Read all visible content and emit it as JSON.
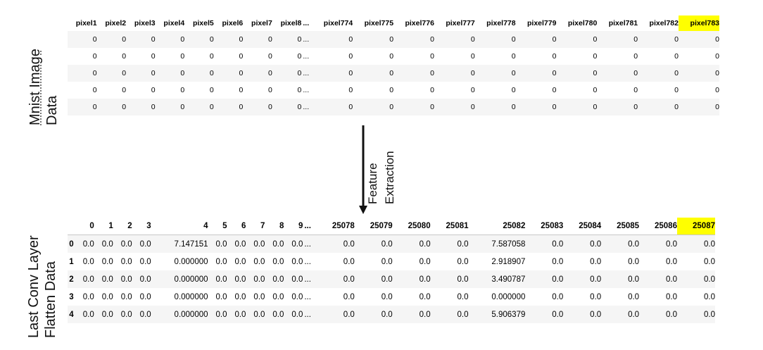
{
  "top_label": {
    "line1": "Mnist Image",
    "line2": "Data"
  },
  "bottom_label": {
    "line1": "Last Conv Layer",
    "line2": "Flatten Data"
  },
  "arrow_label": {
    "line1": "Feature",
    "line2": "Extraction"
  },
  "highlight_color": "#ffff00",
  "mnist_table": {
    "columns": [
      "pixel1",
      "pixel2",
      "pixel3",
      "pixel4",
      "pixel5",
      "pixel6",
      "pixel7",
      "pixel8",
      "...",
      "pixel774",
      "pixel775",
      "pixel776",
      "pixel777",
      "pixel778",
      "pixel779",
      "pixel780",
      "pixel781",
      "pixel782",
      "pixel783"
    ],
    "highlighted_column": "pixel783",
    "rows": [
      [
        "0",
        "0",
        "0",
        "0",
        "0",
        "0",
        "0",
        "0",
        "...",
        "0",
        "0",
        "0",
        "0",
        "0",
        "0",
        "0",
        "0",
        "0",
        "0"
      ],
      [
        "0",
        "0",
        "0",
        "0",
        "0",
        "0",
        "0",
        "0",
        "...",
        "0",
        "0",
        "0",
        "0",
        "0",
        "0",
        "0",
        "0",
        "0",
        "0"
      ],
      [
        "0",
        "0",
        "0",
        "0",
        "0",
        "0",
        "0",
        "0",
        "...",
        "0",
        "0",
        "0",
        "0",
        "0",
        "0",
        "0",
        "0",
        "0",
        "0"
      ],
      [
        "0",
        "0",
        "0",
        "0",
        "0",
        "0",
        "0",
        "0",
        "...",
        "0",
        "0",
        "0",
        "0",
        "0",
        "0",
        "0",
        "0",
        "0",
        "0"
      ],
      [
        "0",
        "0",
        "0",
        "0",
        "0",
        "0",
        "0",
        "0",
        "...",
        "0",
        "0",
        "0",
        "0",
        "0",
        "0",
        "0",
        "0",
        "0",
        "0"
      ]
    ]
  },
  "flatten_table": {
    "columns": [
      "0",
      "1",
      "2",
      "3",
      "4",
      "5",
      "6",
      "7",
      "8",
      "9",
      "...",
      "25078",
      "25079",
      "25080",
      "25081",
      "25082",
      "25083",
      "25084",
      "25085",
      "25086",
      "25087"
    ],
    "highlighted_column": "25087",
    "index": [
      "0",
      "1",
      "2",
      "3",
      "4"
    ],
    "rows": [
      [
        "0.0",
        "0.0",
        "0.0",
        "0.0",
        "7.147151",
        "0.0",
        "0.0",
        "0.0",
        "0.0",
        "0.0",
        "...",
        "0.0",
        "0.0",
        "0.0",
        "0.0",
        "7.587058",
        "0.0",
        "0.0",
        "0.0",
        "0.0",
        "0.0"
      ],
      [
        "0.0",
        "0.0",
        "0.0",
        "0.0",
        "0.000000",
        "0.0",
        "0.0",
        "0.0",
        "0.0",
        "0.0",
        "...",
        "0.0",
        "0.0",
        "0.0",
        "0.0",
        "2.918907",
        "0.0",
        "0.0",
        "0.0",
        "0.0",
        "0.0"
      ],
      [
        "0.0",
        "0.0",
        "0.0",
        "0.0",
        "0.000000",
        "0.0",
        "0.0",
        "0.0",
        "0.0",
        "0.0",
        "...",
        "0.0",
        "0.0",
        "0.0",
        "0.0",
        "3.490787",
        "0.0",
        "0.0",
        "0.0",
        "0.0",
        "0.0"
      ],
      [
        "0.0",
        "0.0",
        "0.0",
        "0.0",
        "0.000000",
        "0.0",
        "0.0",
        "0.0",
        "0.0",
        "0.0",
        "...",
        "0.0",
        "0.0",
        "0.0",
        "0.0",
        "0.000000",
        "0.0",
        "0.0",
        "0.0",
        "0.0",
        "0.0"
      ],
      [
        "0.0",
        "0.0",
        "0.0",
        "0.0",
        "0.000000",
        "0.0",
        "0.0",
        "0.0",
        "0.0",
        "0.0",
        "...",
        "0.0",
        "0.0",
        "0.0",
        "0.0",
        "5.906379",
        "0.0",
        "0.0",
        "0.0",
        "0.0",
        "0.0"
      ]
    ]
  }
}
